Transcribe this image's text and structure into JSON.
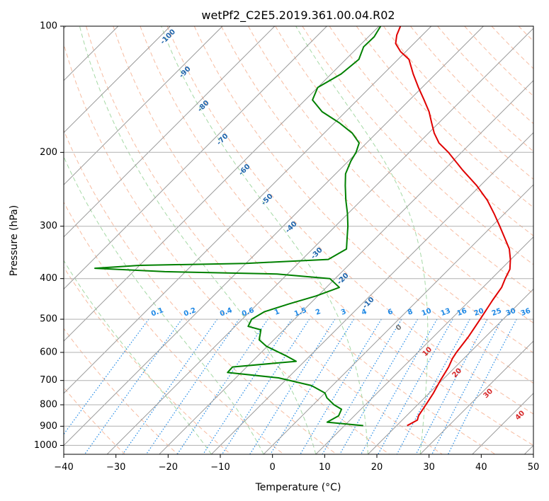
{
  "chart_data": {
    "type": "line",
    "title": "wetPf2_C2E5.2019.361.00.04.R02",
    "xlabel": "Temperature (°C)",
    "ylabel": "Pressure (hPa)",
    "xlim": [
      -40,
      50
    ],
    "ylim": [
      1050,
      100
    ],
    "y_scale": "log",
    "xticks": [
      -40,
      -30,
      -20,
      -10,
      0,
      10,
      20,
      30,
      40,
      50
    ],
    "yticks": [
      100,
      200,
      300,
      400,
      500,
      600,
      700,
      800,
      900,
      1000
    ],
    "grid": true,
    "skew": true,
    "colors": {
      "temperature": "#e00000",
      "dewpoint": "#008000",
      "isotherm": "#999999",
      "dry_adiabat": "#f4a582",
      "moist_adiabat": "#8fcf8f",
      "mixing_ratio": "#1e88e5",
      "isotherm_label": "#2166ac",
      "warm_label": "#d62728"
    },
    "series": [
      {
        "style": "temperature",
        "points": [
          {
            "p": 897,
            "t": 22.0
          },
          {
            "p": 870,
            "t": 22.9
          },
          {
            "p": 850,
            "t": 22.3
          },
          {
            "p": 800,
            "t": 21.6
          },
          {
            "p": 750,
            "t": 20.8
          },
          {
            "p": 700,
            "t": 19.7
          },
          {
            "p": 650,
            "t": 18.7
          },
          {
            "p": 620,
            "t": 17.8
          },
          {
            "p": 600,
            "t": 17.4
          },
          {
            "p": 550,
            "t": 16.7
          },
          {
            "p": 500,
            "t": 15.6
          },
          {
            "p": 450,
            "t": 14.3
          },
          {
            "p": 420,
            "t": 13.6
          },
          {
            "p": 400,
            "t": 12.6
          },
          {
            "p": 380,
            "t": 11.7
          },
          {
            "p": 360,
            "t": 9.9
          },
          {
            "p": 340,
            "t": 7.7
          },
          {
            "p": 320,
            "t": 4.7
          },
          {
            "p": 300,
            "t": 1.5
          },
          {
            "p": 280,
            "t": -2.0
          },
          {
            "p": 260,
            "t": -5.9
          },
          {
            "p": 240,
            "t": -10.7
          },
          {
            "p": 220,
            "t": -16.5
          },
          {
            "p": 200,
            "t": -22.5
          },
          {
            "p": 190,
            "t": -26.1
          },
          {
            "p": 180,
            "t": -28.9
          },
          {
            "p": 170,
            "t": -31.4
          },
          {
            "p": 160,
            "t": -34.0
          },
          {
            "p": 150,
            "t": -37.2
          },
          {
            "p": 140,
            "t": -40.7
          },
          {
            "p": 130,
            "t": -44.3
          },
          {
            "p": 120,
            "t": -47.9
          },
          {
            "p": 115,
            "t": -51.0
          },
          {
            "p": 110,
            "t": -53.5
          },
          {
            "p": 105,
            "t": -54.9
          },
          {
            "p": 100,
            "t": -55.9
          }
        ]
      },
      {
        "style": "dewpoint",
        "points": [
          {
            "p": 897,
            "t": 13.6
          },
          {
            "p": 880,
            "t": 6.0
          },
          {
            "p": 850,
            "t": 7.0
          },
          {
            "p": 820,
            "t": 6.3
          },
          {
            "p": 800,
            "t": 4.0
          },
          {
            "p": 770,
            "t": 1.3
          },
          {
            "p": 750,
            "t": 0.0
          },
          {
            "p": 720,
            "t": -4.0
          },
          {
            "p": 690,
            "t": -11.8
          },
          {
            "p": 670,
            "t": -22.6
          },
          {
            "p": 650,
            "t": -22.7
          },
          {
            "p": 630,
            "t": -11.6
          },
          {
            "p": 610,
            "t": -14.8
          },
          {
            "p": 580,
            "t": -20.2
          },
          {
            "p": 560,
            "t": -22.8
          },
          {
            "p": 530,
            "t": -24.4
          },
          {
            "p": 520,
            "t": -27.5
          },
          {
            "p": 500,
            "t": -28.2
          },
          {
            "p": 480,
            "t": -27.2
          },
          {
            "p": 460,
            "t": -24.0
          },
          {
            "p": 440,
            "t": -20.3
          },
          {
            "p": 420,
            "t": -17.5
          },
          {
            "p": 400,
            "t": -21.0
          },
          {
            "p": 390,
            "t": -32.0
          },
          {
            "p": 385,
            "t": -54.0
          },
          {
            "p": 378,
            "t": -68.0
          },
          {
            "p": 372,
            "t": -60.0
          },
          {
            "p": 368,
            "t": -40.0
          },
          {
            "p": 360,
            "t": -25.0
          },
          {
            "p": 340,
            "t": -23.5
          },
          {
            "p": 320,
            "t": -25.5
          },
          {
            "p": 300,
            "t": -27.6
          },
          {
            "p": 280,
            "t": -30.1
          },
          {
            "p": 260,
            "t": -33.0
          },
          {
            "p": 240,
            "t": -35.9
          },
          {
            "p": 225,
            "t": -38.1
          },
          {
            "p": 210,
            "t": -39.5
          },
          {
            "p": 200,
            "t": -40.2
          },
          {
            "p": 190,
            "t": -41.4
          },
          {
            "p": 180,
            "t": -44.6
          },
          {
            "p": 170,
            "t": -49.1
          },
          {
            "p": 160,
            "t": -54.5
          },
          {
            "p": 150,
            "t": -58.6
          },
          {
            "p": 140,
            "t": -60.0
          },
          {
            "p": 130,
            "t": -58.1
          },
          {
            "p": 120,
            "t": -57.5
          },
          {
            "p": 112,
            "t": -59.0
          },
          {
            "p": 106,
            "t": -58.9
          },
          {
            "p": 100,
            "t": -59.7
          }
        ]
      }
    ],
    "isotherm_labels": [
      "-100",
      "-90",
      "-80",
      "-70",
      "-60",
      "-50",
      "-40",
      "-30",
      "-20",
      "-10",
      "0",
      "10",
      "20",
      "30",
      "40"
    ],
    "mixing_ratio_labels": [
      "0.1",
      "0.2",
      "0.4",
      "0.6",
      "1",
      "1.5",
      "2",
      "3",
      "4",
      "6",
      "8",
      "10",
      "13",
      "16",
      "20",
      "25",
      "30",
      "36"
    ]
  }
}
